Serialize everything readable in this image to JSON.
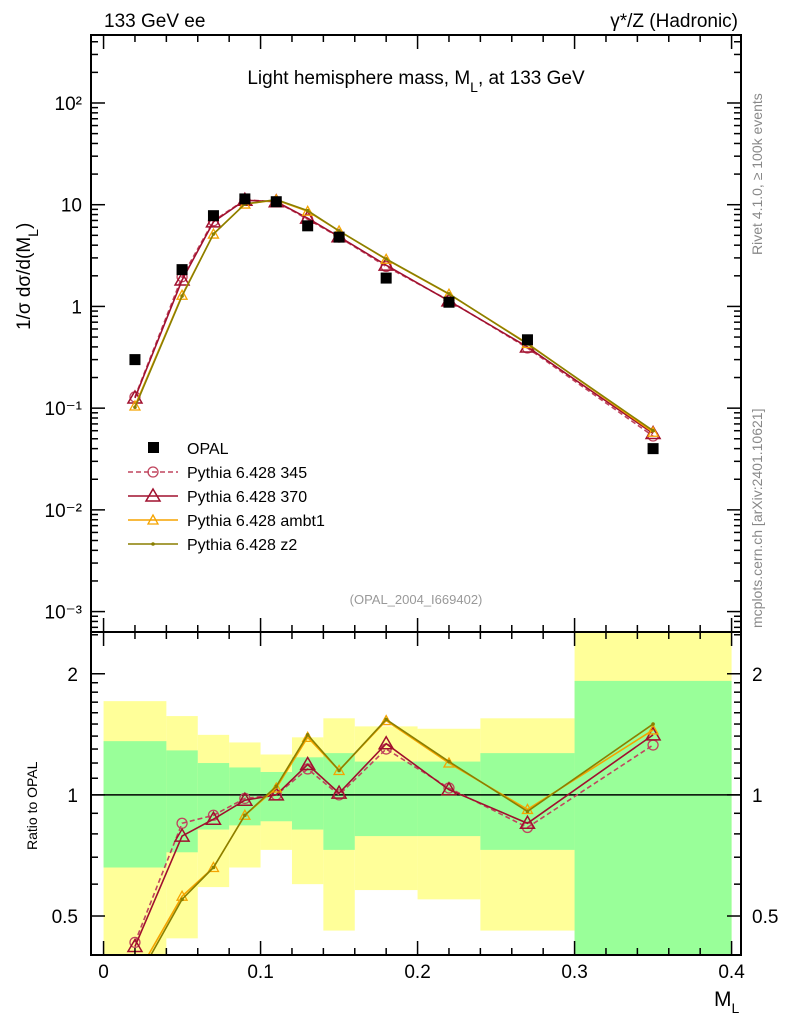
{
  "header": {
    "left": "133 GeV ee",
    "right": "γ*/Z (Hadronic)"
  },
  "side_labels": {
    "top": "Rivet 4.1.0, ≥ 100k events",
    "bottom": "mcplots.cern.ch [arXiv:2401.10621]"
  },
  "chart_data": [
    {
      "type": "scatter",
      "title": "Light hemisphere mass, M",
      "title_sub": "L",
      "title_tail": ", at 133 GeV",
      "ylabel": "1/σ  dσ/d(M",
      "ylabel_sub": "L",
      "ylabel_tail": ")",
      "yscale": "log",
      "ylim": [
        0.00063,
        466
      ],
      "xlim": [
        -0.008,
        0.406
      ],
      "ytick_values": [
        0.001,
        0.01,
        0.1,
        1,
        10,
        100
      ],
      "ytick_labels": [
        "10⁻³",
        "10⁻²",
        "10⁻¹",
        "1",
        "10",
        "10²"
      ],
      "watermark": "(OPAL_2004_I669402)",
      "legend_position": "lower-left",
      "x": [
        0.02,
        0.05,
        0.07,
        0.09,
        0.11,
        0.13,
        0.15,
        0.18,
        0.22,
        0.27,
        0.35
      ],
      "bin_edges": [
        0,
        0.04,
        0.06,
        0.08,
        0.1,
        0.12,
        0.14,
        0.16,
        0.2,
        0.24,
        0.3,
        0.4
      ],
      "data": {
        "name": "OPAL",
        "values": [
          0.3,
          2.3,
          7.8,
          11.4,
          10.7,
          6.2,
          4.8,
          1.9,
          1.1,
          0.47,
          0.04
        ]
      },
      "series": [
        {
          "name": "Pythia 6.428 345",
          "color": "#c0455e",
          "marker": "circle",
          "dashed": true,
          "ratio": [
            0.43,
            0.85,
            0.89,
            0.98,
            1.0,
            1.16,
            1.0,
            1.3,
            1.04,
            0.83,
            1.33
          ]
        },
        {
          "name": "Pythia 6.428 370",
          "color": "#a0102e",
          "marker": "triangle",
          "dashed": false,
          "ratio": [
            0.42,
            0.79,
            0.87,
            0.97,
            1.0,
            1.19,
            1.01,
            1.34,
            1.03,
            0.85,
            1.41
          ]
        },
        {
          "name": "Pythia 6.428 ambt1",
          "color": "#f5a400",
          "marker": "triangle-small",
          "dashed": false,
          "ratio": [
            0.35,
            0.56,
            0.66,
            0.89,
            1.04,
            1.39,
            1.15,
            1.53,
            1.2,
            0.92,
            1.45
          ]
        },
        {
          "name": "Pythia 6.428 z2",
          "color": "#8a7f00",
          "marker": "dot",
          "dashed": false,
          "ratio": [
            0.34,
            0.55,
            0.66,
            0.89,
            1.05,
            1.41,
            1.15,
            1.54,
            1.21,
            0.91,
            1.5
          ]
        }
      ]
    },
    {
      "type": "area",
      "ylabel": "Ratio to OPAL",
      "yscale": "log",
      "ylim": [
        0.4,
        2.54
      ],
      "ytick_values": [
        0.5,
        1,
        2
      ],
      "ytick_labels": [
        "0.5",
        "1",
        "2"
      ],
      "xlabel": "M",
      "xlabel_sub": "L",
      "xtick_values": [
        0,
        0.1,
        0.2,
        0.3,
        0.4
      ],
      "xtick_labels": [
        "0",
        "0.1",
        "0.2",
        "0.3",
        "0.4"
      ],
      "band_colors": {
        "total": "#ffff99",
        "stat": "#99ff99"
      },
      "yellow_band": [
        [
          0.35,
          1.71
        ],
        [
          0.44,
          1.57
        ],
        [
          0.59,
          1.41
        ],
        [
          0.66,
          1.35
        ],
        [
          0.73,
          1.26
        ],
        [
          0.6,
          1.39
        ],
        [
          0.46,
          1.55
        ],
        [
          0.58,
          1.48
        ],
        [
          0.55,
          1.46
        ],
        [
          0.46,
          1.55
        ],
        [
          0.35,
          2.7
        ]
      ],
      "green_band": [
        [
          0.66,
          1.36
        ],
        [
          0.72,
          1.29
        ],
        [
          0.82,
          1.2
        ],
        [
          0.84,
          1.17
        ],
        [
          0.86,
          1.14
        ],
        [
          0.82,
          1.24
        ],
        [
          0.73,
          1.27
        ],
        [
          0.79,
          1.21
        ],
        [
          0.79,
          1.21
        ],
        [
          0.73,
          1.27
        ],
        [
          0.35,
          1.92
        ]
      ]
    }
  ]
}
